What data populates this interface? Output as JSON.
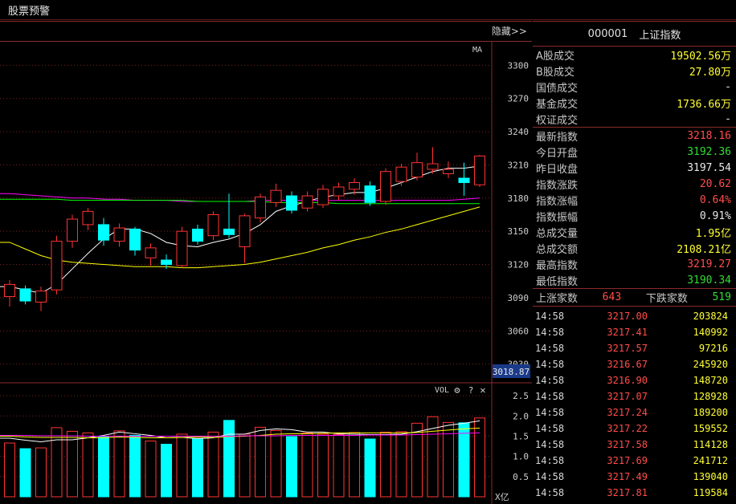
{
  "window": {
    "title": "股票预警"
  },
  "chart": {
    "hide_label": "隐藏>>",
    "ma_label": "MA",
    "vol_label": "VOL",
    "vol_unit": "X亿",
    "current_price_tag": "3018.87",
    "price_ticks": [
      "3300",
      "3270",
      "3240",
      "3210",
      "3180",
      "3150",
      "3120",
      "3090",
      "3060",
      "3030"
    ],
    "vol_ticks": [
      "2.5",
      "2.0",
      "1.5",
      "1.0",
      "0.5"
    ],
    "colors": {
      "up": "#ff3333",
      "down": "#00ffff",
      "ma5": "#ffffff",
      "ma10": "#ffff00",
      "ma20": "#ff00ff",
      "ma60": "#00ff00"
    }
  },
  "chart_data": {
    "type": "candlestick",
    "ylim": [
      3018.87,
      3322
    ],
    "candles": [
      {
        "o": 3091,
        "c": 3102,
        "h": 3106,
        "l": 3082
      },
      {
        "o": 3098,
        "c": 3087,
        "h": 3101,
        "l": 3084
      },
      {
        "o": 3086,
        "c": 3096,
        "h": 3100,
        "l": 3078
      },
      {
        "o": 3097,
        "c": 3141,
        "h": 3146,
        "l": 3093
      },
      {
        "o": 3141,
        "c": 3161,
        "h": 3165,
        "l": 3135
      },
      {
        "o": 3156,
        "c": 3168,
        "h": 3171,
        "l": 3151
      },
      {
        "o": 3156,
        "c": 3142,
        "h": 3162,
        "l": 3137
      },
      {
        "o": 3141,
        "c": 3153,
        "h": 3157,
        "l": 3136
      },
      {
        "o": 3152,
        "c": 3133,
        "h": 3154,
        "l": 3128
      },
      {
        "o": 3126,
        "c": 3135,
        "h": 3139,
        "l": 3119
      },
      {
        "o": 3124,
        "c": 3120,
        "h": 3129,
        "l": 3116
      },
      {
        "o": 3119,
        "c": 3150,
        "h": 3154,
        "l": 3117
      },
      {
        "o": 3152,
        "c": 3141,
        "h": 3156,
        "l": 3138
      },
      {
        "o": 3146,
        "c": 3165,
        "h": 3168,
        "l": 3142
      },
      {
        "o": 3152,
        "c": 3147,
        "h": 3184,
        "l": 3144
      },
      {
        "o": 3136,
        "c": 3164,
        "h": 3166,
        "l": 3121
      },
      {
        "o": 3162,
        "c": 3181,
        "h": 3184,
        "l": 3158
      },
      {
        "o": 3176,
        "c": 3187,
        "h": 3193,
        "l": 3172
      },
      {
        "o": 3182,
        "c": 3169,
        "h": 3186,
        "l": 3166
      },
      {
        "o": 3171,
        "c": 3182,
        "h": 3186,
        "l": 3168
      },
      {
        "o": 3174,
        "c": 3188,
        "h": 3192,
        "l": 3171
      },
      {
        "o": 3182,
        "c": 3190,
        "h": 3194,
        "l": 3178
      },
      {
        "o": 3188,
        "c": 3194,
        "h": 3198,
        "l": 3183
      },
      {
        "o": 3191,
        "c": 3176,
        "h": 3195,
        "l": 3173
      },
      {
        "o": 3177,
        "c": 3204,
        "h": 3207,
        "l": 3174
      },
      {
        "o": 3195,
        "c": 3208,
        "h": 3211,
        "l": 3191
      },
      {
        "o": 3199,
        "c": 3212,
        "h": 3221,
        "l": 3196
      },
      {
        "o": 3206,
        "c": 3211,
        "h": 3226,
        "l": 3202
      },
      {
        "o": 3202,
        "c": 3206,
        "h": 3213,
        "l": 3198
      },
      {
        "o": 3198,
        "c": 3194,
        "h": 3212,
        "l": 3182
      },
      {
        "o": 3192,
        "c": 3218,
        "h": 3219,
        "l": 3190
      }
    ],
    "volumes": [
      1.33,
      1.19,
      1.21,
      1.71,
      1.62,
      1.58,
      1.49,
      1.63,
      1.52,
      1.38,
      1.3,
      1.55,
      1.44,
      1.6,
      1.89,
      1.55,
      1.72,
      1.64,
      1.49,
      1.58,
      1.55,
      1.54,
      1.59,
      1.43,
      1.6,
      1.61,
      1.82,
      1.98,
      1.84,
      1.83,
      1.95
    ],
    "vol_ylim": [
      0,
      2.78
    ],
    "ma_lines": [
      {
        "name": "MA5",
        "values": [
          3100,
          3097,
          3094,
          3102,
          3116,
          3130,
          3143,
          3152,
          3152,
          3148,
          3140,
          3137,
          3136,
          3140,
          3143,
          3148,
          3156,
          3168,
          3173,
          3177,
          3181,
          3183,
          3185,
          3185,
          3189,
          3194,
          3199,
          3204,
          3207,
          3207,
          3209
        ]
      },
      {
        "name": "MA10",
        "values": [
          3140,
          3134,
          3128,
          3124,
          3122,
          3121,
          3120,
          3119,
          3118,
          3118,
          3118,
          3117,
          3117,
          3118,
          3119,
          3120,
          3122,
          3125,
          3128,
          3131,
          3135,
          3138,
          3142,
          3145,
          3149,
          3152,
          3156,
          3160,
          3164,
          3168,
          3172
        ]
      },
      {
        "name": "MA20",
        "values": [
          3184,
          3183,
          3182,
          3181,
          3180,
          3180,
          3179,
          3179,
          3178,
          3178,
          3178,
          3177,
          3177,
          3177,
          3177,
          3177,
          3178,
          3178,
          3178,
          3178,
          3178,
          3178,
          3178,
          3178,
          3178,
          3178,
          3178,
          3178,
          3178,
          3179,
          3180
        ]
      },
      {
        "name": "MA60",
        "values": [
          3179,
          3179,
          3179,
          3179,
          3178,
          3178,
          3178,
          3178,
          3178,
          3178,
          3178,
          3178,
          3177,
          3177,
          3177,
          3177,
          3177,
          3176,
          3176,
          3176,
          3176,
          3175,
          3175,
          3175,
          3175,
          3175,
          3175,
          3175,
          3175,
          3175,
          3175
        ]
      }
    ],
    "vol_ma_lines": [
      {
        "name": "VMA5",
        "values": [
          1.45,
          1.4,
          1.36,
          1.41,
          1.41,
          1.46,
          1.52,
          1.6,
          1.56,
          1.52,
          1.46,
          1.47,
          1.44,
          1.46,
          1.55,
          1.55,
          1.64,
          1.68,
          1.66,
          1.6,
          1.6,
          1.56,
          1.55,
          1.54,
          1.54,
          1.55,
          1.61,
          1.69,
          1.77,
          1.82,
          1.88
        ]
      },
      {
        "name": "VMA10",
        "values": [
          1.5,
          1.48,
          1.47,
          1.47,
          1.47,
          1.46,
          1.46,
          1.48,
          1.47,
          1.46,
          1.46,
          1.47,
          1.48,
          1.47,
          1.49,
          1.5,
          1.52,
          1.55,
          1.56,
          1.56,
          1.57,
          1.58,
          1.58,
          1.58,
          1.58,
          1.58,
          1.59,
          1.62,
          1.65,
          1.68,
          1.7
        ]
      },
      {
        "name": "VMA20",
        "values": [
          1.52,
          1.52,
          1.51,
          1.51,
          1.51,
          1.5,
          1.5,
          1.5,
          1.5,
          1.5,
          1.5,
          1.5,
          1.5,
          1.5,
          1.5,
          1.51,
          1.51,
          1.51,
          1.52,
          1.52,
          1.52,
          1.52,
          1.52,
          1.53,
          1.53,
          1.53,
          1.54,
          1.55,
          1.56,
          1.57,
          1.58
        ]
      }
    ]
  },
  "quote": {
    "code": "000001",
    "name": "上证指数",
    "trades": [
      {
        "label": "A股成交",
        "value": "19502.56万",
        "color": "yellow"
      },
      {
        "label": "B股成交",
        "value": "27.80万",
        "color": "yellow"
      },
      {
        "label": "国债成交",
        "value": "-",
        "color": "white"
      },
      {
        "label": "基金成交",
        "value": "1736.66万",
        "color": "yellow"
      },
      {
        "label": "权证成交",
        "value": "-",
        "color": "white"
      }
    ],
    "stats": [
      {
        "label": "最新指数",
        "value": "3218.16",
        "color": "red"
      },
      {
        "label": "今日开盘",
        "value": "3192.36",
        "color": "green"
      },
      {
        "label": "昨日收盘",
        "value": "3197.54",
        "color": "white"
      },
      {
        "label": "指数涨跌",
        "value": "20.62",
        "color": "red"
      },
      {
        "label": "指数涨幅",
        "value": "0.64%",
        "color": "red"
      },
      {
        "label": "指数振幅",
        "value": "0.91%",
        "color": "white"
      },
      {
        "label": "总成交量",
        "value": "1.95亿",
        "color": "yellow"
      },
      {
        "label": "总成交额",
        "value": "2108.21亿",
        "color": "yellow"
      },
      {
        "label": "最高指数",
        "value": "3219.27",
        "color": "red"
      },
      {
        "label": "最低指数",
        "value": "3190.34",
        "color": "green"
      }
    ],
    "breadth": {
      "up_label": "上涨家数",
      "up": "643",
      "down_label": "下跌家数",
      "down": "519"
    },
    "ticks": [
      {
        "time": "14:58",
        "price": "3217.00",
        "vol": "203824"
      },
      {
        "time": "14:58",
        "price": "3217.41",
        "vol": "140992"
      },
      {
        "time": "14:58",
        "price": "3217.57",
        "vol": "97216"
      },
      {
        "time": "14:58",
        "price": "3216.67",
        "vol": "245920"
      },
      {
        "time": "14:58",
        "price": "3216.90",
        "vol": "148720"
      },
      {
        "time": "14:58",
        "price": "3217.07",
        "vol": "128928"
      },
      {
        "time": "14:58",
        "price": "3217.24",
        "vol": "189200"
      },
      {
        "time": "14:58",
        "price": "3217.22",
        "vol": "159552"
      },
      {
        "time": "14:58",
        "price": "3217.58",
        "vol": "114128"
      },
      {
        "time": "14:58",
        "price": "3217.69",
        "vol": "241712"
      },
      {
        "time": "14:58",
        "price": "3217.49",
        "vol": "139040"
      },
      {
        "time": "14:58",
        "price": "3217.81",
        "vol": "119584"
      }
    ]
  }
}
